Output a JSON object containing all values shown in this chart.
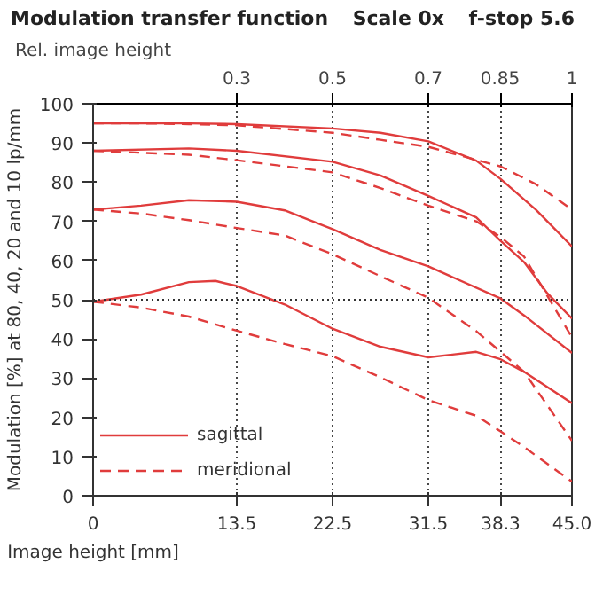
{
  "chart_data": {
    "type": "line",
    "title": "Modulation transfer function",
    "annotations": [
      "Scale 0x",
      "f-stop 5.6"
    ],
    "xlabel": "Image height [mm]",
    "ylabel": "Modulation [%] at 80, 40, 20 and 10 lp/mm",
    "x2label": "Rel. image height",
    "xlim": [
      0,
      45
    ],
    "ylim": [
      0,
      100
    ],
    "x2lim": [
      0,
      1
    ],
    "xticks": [
      0,
      13.5,
      22.5,
      31.5,
      38.3,
      {
        "value": 45,
        "label": "45.0"
      }
    ],
    "yticks": [
      0,
      10,
      20,
      30,
      40,
      50,
      60,
      70,
      80,
      90,
      100
    ],
    "x2ticks": [
      0.3,
      0.5,
      0.7,
      0.85,
      1
    ],
    "grid": "x",
    "legend": "bottom left",
    "ref_lines": [
      {
        "axis": "y",
        "value": 50,
        "line_style": "dotted"
      }
    ],
    "series": [
      {
        "name": "sagittal",
        "color": "#e03c3c",
        "line_style": "solid",
        "x": [
          0,
          4.5,
          9,
          13.5,
          22.5,
          27,
          31.5,
          36,
          38.3,
          41.6,
          45
        ],
        "values": [
          95,
          95,
          95,
          94.8,
          93.7,
          92.6,
          90.4,
          85.5,
          80.8,
          73,
          63.6
        ]
      },
      {
        "name": "meridional",
        "color": "#e03c3c",
        "line_style": "dashed",
        "x": [
          0,
          4.5,
          9,
          13.5,
          22.5,
          27,
          31.5,
          38.3,
          41.6,
          45
        ],
        "values": [
          95,
          95,
          94.8,
          94.5,
          92.6,
          90.8,
          89,
          84,
          79.5,
          73
        ]
      },
      {
        "color": "#e03c3c",
        "line_style": "solid",
        "x": [
          0,
          9,
          13.5,
          22.5,
          27,
          31.5,
          36,
          38.3,
          40.5,
          42.7,
          45
        ],
        "values": [
          88,
          88.6,
          88,
          85.2,
          81.7,
          76.5,
          71,
          65,
          59.6,
          51.6,
          45.2
        ]
      },
      {
        "color": "#e03c3c",
        "line_style": "dashed",
        "x": [
          0,
          9,
          13.5,
          22.5,
          27,
          31.5,
          36,
          38.3,
          40.5,
          45
        ],
        "values": [
          88,
          87,
          85.6,
          82.5,
          78.5,
          74,
          70,
          66,
          61,
          40.4
        ]
      },
      {
        "color": "#e03c3c",
        "line_style": "solid",
        "x": [
          0,
          4.5,
          9,
          13.5,
          18,
          22.5,
          27,
          31.5,
          38.3,
          40.5,
          45
        ],
        "values": [
          73,
          74,
          75.4,
          75,
          72.8,
          68,
          62.7,
          58.5,
          50.3,
          46,
          36.4
        ]
      },
      {
        "color": "#e03c3c",
        "line_style": "dashed",
        "x": [
          0,
          4.5,
          9,
          13.5,
          18,
          22.5,
          27,
          31.5,
          36,
          40.5,
          45
        ],
        "values": [
          73,
          72,
          70.3,
          68.3,
          66.4,
          61.6,
          56,
          50.5,
          42,
          31.6,
          14
        ]
      },
      {
        "color": "#e03c3c",
        "line_style": "solid",
        "x": [
          0,
          4.5,
          9,
          11.5,
          13.5,
          18,
          22.5,
          27,
          31.5,
          36,
          38.3,
          40.5,
          45
        ],
        "values": [
          49.5,
          51.3,
          54.5,
          54.8,
          53.5,
          48.8,
          42.6,
          38,
          35.3,
          36.7,
          34.8,
          31.6,
          23.6
        ]
      },
      {
        "color": "#e03c3c",
        "line_style": "dashed",
        "x": [
          0,
          4.5,
          9,
          13.5,
          18,
          22.5,
          27,
          31.5,
          36,
          38.3,
          40.5,
          45
        ],
        "values": [
          49.5,
          48,
          45.7,
          42.1,
          38.7,
          35.6,
          30.2,
          24.4,
          20.4,
          16.4,
          12.4,
          3.6
        ]
      }
    ]
  }
}
